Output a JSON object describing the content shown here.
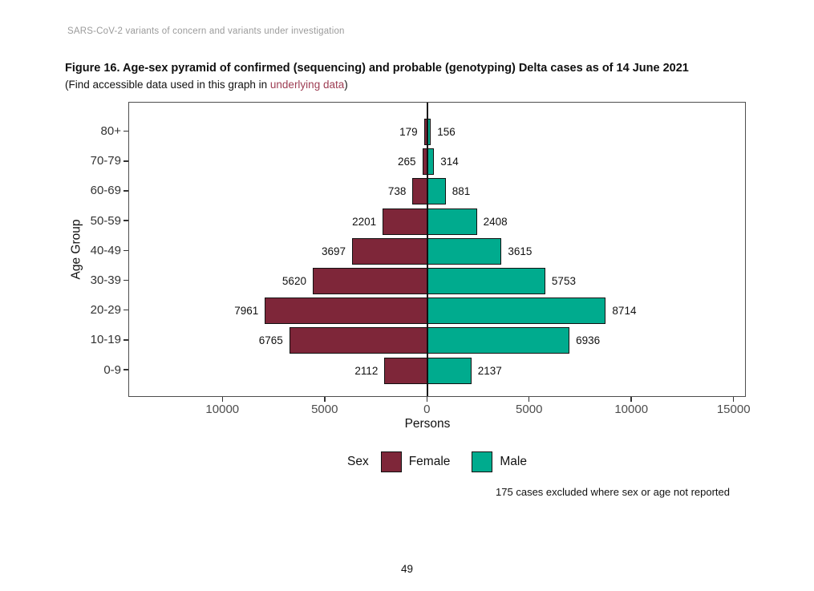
{
  "page": {
    "header": "SARS-CoV-2 variants of concern and variants under investigation",
    "page_number": "49"
  },
  "figure": {
    "title": "Figure 16. Age-sex pyramid of confirmed (sequencing) and probable (genotyping) Delta cases as of 14 June 2021",
    "subtitle_prefix": "(Find accessible data used in this graph in ",
    "subtitle_link": "underlying data",
    "subtitle_suffix": ")"
  },
  "chart_data": {
    "type": "bar",
    "variant": "population_pyramid",
    "title": "Age-sex pyramid of confirmed (sequencing) and probable (genotyping) Delta cases as of 14 June 2021",
    "categories": [
      "80+",
      "70-79",
      "60-69",
      "50-59",
      "40-49",
      "30-39",
      "20-29",
      "10-19",
      "0-9"
    ],
    "categories_order": "top_to_bottom",
    "series": [
      {
        "name": "Female",
        "side": "left",
        "color": "#7e2639",
        "values": [
          179,
          265,
          738,
          2201,
          3697,
          5620,
          7961,
          6765,
          2112
        ]
      },
      {
        "name": "Male",
        "side": "right",
        "color": "#00ab8e",
        "values": [
          156,
          314,
          881,
          2408,
          3615,
          5753,
          8714,
          6936,
          2137
        ]
      }
    ],
    "xlabel": "Persons",
    "ylabel": "Age Group",
    "x_ticks": [
      -10000,
      -5000,
      0,
      5000,
      10000,
      15000
    ],
    "x_tick_labels": [
      "10000",
      "5000",
      "0",
      "5000",
      "10000",
      "15000"
    ],
    "xlim": [
      -14600,
      15600
    ],
    "grid": false,
    "bar_value_labels": true,
    "legend_title": "Sex",
    "legend_position": "bottom",
    "note": "175 cases excluded where sex or age not reported"
  }
}
